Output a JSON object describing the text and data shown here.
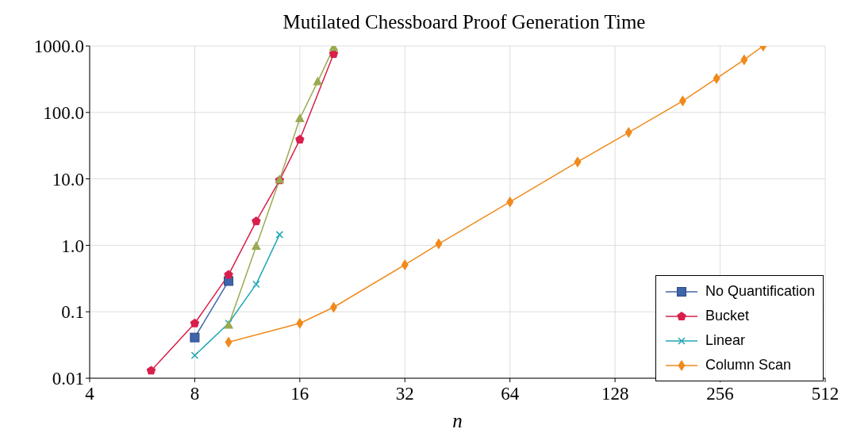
{
  "chart_data": {
    "type": "line",
    "title": "Mutilated Chessboard Proof Generation Time",
    "xlabel": "n",
    "log": "xy",
    "grid": true,
    "legend": "bottom right",
    "xlim": [
      4,
      512
    ],
    "xticks": [
      4,
      8,
      16,
      32,
      64,
      128,
      256,
      512
    ],
    "ylim": [
      0.01,
      1000
    ],
    "yticks": [
      0.01,
      {
        "value": 0.1,
        "label": "0.1"
      },
      {
        "value": 1,
        "label": "1.0"
      },
      {
        "value": 10,
        "label": "10.0"
      },
      {
        "value": 100,
        "label": "100.0"
      },
      {
        "value": 1000,
        "label": "1000.0"
      }
    ],
    "series": [
      {
        "name": "No Quantification",
        "color": "#3f64aa",
        "marker": "square",
        "x": [
          8,
          10
        ],
        "values": [
          0.041,
          0.29
        ]
      },
      {
        "name": "Bucket",
        "color": "#d81f4c",
        "marker": "circle",
        "x": [
          6,
          8,
          10,
          12,
          14,
          16,
          20
        ],
        "values": [
          0.013,
          0.067,
          0.36,
          2.3,
          9.5,
          39,
          760
        ]
      },
      {
        "name": "Linear",
        "color": "#22a6b5",
        "marker": "cross",
        "x": [
          8,
          10,
          12,
          14
        ],
        "values": [
          0.022,
          0.067,
          0.26,
          1.45
        ]
      },
      {
        "color": "#99ab52",
        "marker": "triangle",
        "x": [
          10,
          12,
          14,
          16,
          18,
          20
        ],
        "values": [
          0.063,
          0.97,
          9.7,
          81,
          290,
          950
        ]
      },
      {
        "name": "Column Scan",
        "color": "#f08a1c",
        "marker": "diamond",
        "x": [
          10,
          16,
          20,
          32,
          40,
          64,
          100,
          140,
          200,
          250,
          300,
          340
        ],
        "values": [
          0.035,
          0.067,
          0.117,
          0.51,
          1.05,
          4.5,
          18,
          50,
          149,
          325,
          620,
          1000
        ]
      }
    ]
  }
}
